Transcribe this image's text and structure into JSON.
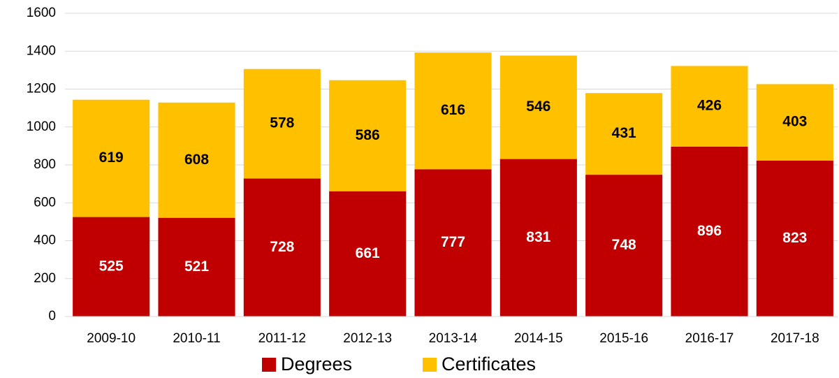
{
  "chart_data": {
    "type": "stacked_bar",
    "categories": [
      "2009-10",
      "2010-11",
      "2011-12",
      "2012-13",
      "2013-14",
      "2014-15",
      "2015-16",
      "2016-17",
      "2017-18"
    ],
    "series": [
      {
        "name": "Degrees",
        "color": "#c00000",
        "values": [
          525,
          521,
          728,
          661,
          777,
          831,
          748,
          896,
          823
        ]
      },
      {
        "name": "Certificates",
        "color": "#ffc000",
        "values": [
          619,
          608,
          578,
          586,
          616,
          546,
          431,
          426,
          403
        ]
      }
    ],
    "ylim": [
      0,
      1600
    ],
    "yticks": [
      0,
      200,
      400,
      600,
      800,
      1000,
      1200,
      1400,
      1600
    ],
    "grid": true,
    "legend": "bottom"
  }
}
